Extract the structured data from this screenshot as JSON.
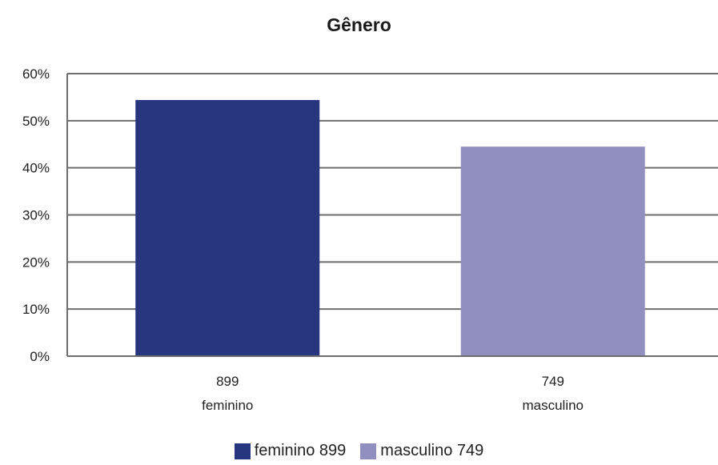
{
  "chart_data": {
    "type": "bar",
    "title": "Gênero",
    "categories": [
      "feminino",
      "masculino"
    ],
    "category_counts": [
      "899",
      "749"
    ],
    "values": [
      54.4,
      44.5
    ],
    "series": [
      {
        "name": "feminino 899",
        "values": [
          54.4,
          null
        ],
        "color": "#283680"
      },
      {
        "name": "masculino 749",
        "values": [
          null,
          44.5
        ],
        "color": "#918fc0"
      }
    ],
    "ylim": [
      0,
      60
    ],
    "yticks": [
      "0%",
      "10%",
      "20%",
      "30%",
      "40%",
      "50%",
      "60%"
    ],
    "grid": true,
    "legend": "bottom-center"
  }
}
